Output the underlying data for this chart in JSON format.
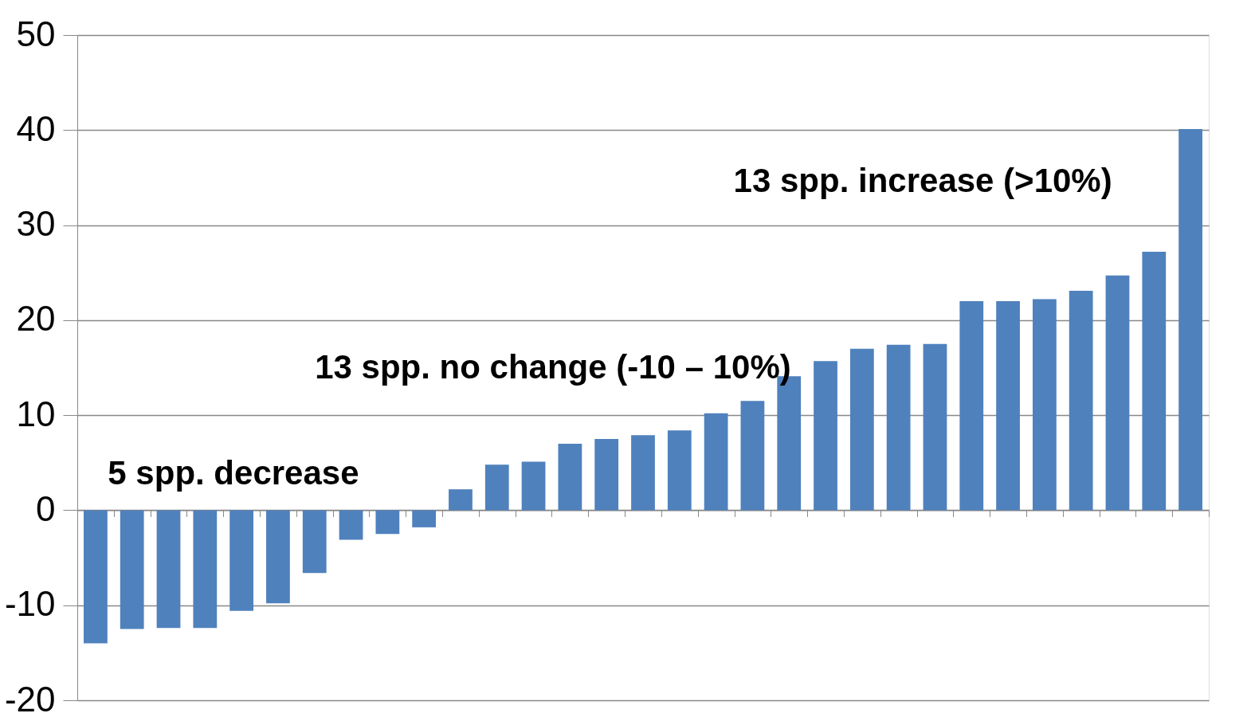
{
  "chart_data": {
    "type": "bar",
    "categories": [
      null,
      null,
      null,
      null,
      null,
      null,
      null,
      null,
      null,
      null,
      null,
      null,
      null,
      null,
      null,
      null,
      null,
      null,
      null,
      null,
      null,
      null,
      null,
      null,
      null,
      null,
      null,
      null,
      null,
      null,
      null
    ],
    "values": [
      -14.0,
      -12.5,
      -12.4,
      -12.4,
      -10.6,
      -9.8,
      -6.6,
      -3.1,
      -2.5,
      -1.8,
      2.2,
      4.8,
      5.1,
      7.0,
      7.5,
      7.9,
      8.4,
      10.2,
      11.5,
      14.1,
      15.7,
      17.0,
      17.4,
      17.5,
      22.0,
      22.0,
      22.2,
      23.1,
      24.7,
      27.2,
      40.1
    ],
    "color": "#4f81bd",
    "ylim": [
      -20,
      50
    ],
    "yticks": [
      -20,
      -10,
      0,
      10,
      20,
      30,
      40,
      50
    ],
    "grid": "y",
    "annotations": [
      "5 spp. decrease",
      "13 spp. no change (-10 – 10%)",
      "13 spp. increase (>10%)"
    ]
  }
}
